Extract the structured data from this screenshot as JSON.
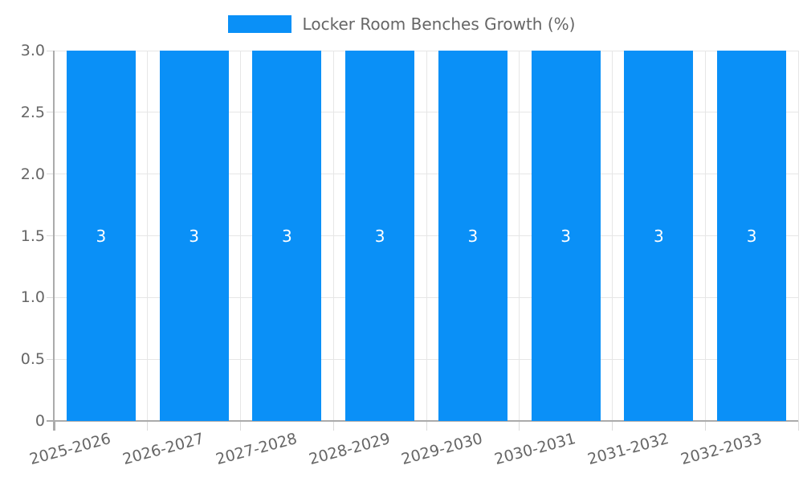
{
  "chart_data": {
    "type": "bar",
    "title": "",
    "legend": {
      "label": "Locker Room Benches Growth (%)",
      "position": "top-center"
    },
    "categories": [
      "2025-2026",
      "2026-2027",
      "2027-2028",
      "2028-2029",
      "2029-2030",
      "2030-2031",
      "2031-2032",
      "2032-2033"
    ],
    "series": [
      {
        "name": "Locker Room Benches Growth (%)",
        "values": [
          3,
          3,
          3,
          3,
          3,
          3,
          3,
          3
        ]
      }
    ],
    "bar_value_labels": [
      "3",
      "3",
      "3",
      "3",
      "3",
      "3",
      "3",
      "3"
    ],
    "xlabel": "",
    "ylabel": "",
    "ylim": [
      0,
      3
    ],
    "ytick_labels": [
      "0",
      "0.5",
      "1.0",
      "1.5",
      "2.0",
      "2.5",
      "3.0"
    ],
    "grid": true,
    "colors": {
      "bar": "#0A90F7",
      "grid": "#E6E6E6",
      "axis": "#ABABAB",
      "tick": "#DADADA",
      "text": "#666666",
      "bar_label": "#FFFFFF",
      "background": "#FFFFFF"
    }
  }
}
